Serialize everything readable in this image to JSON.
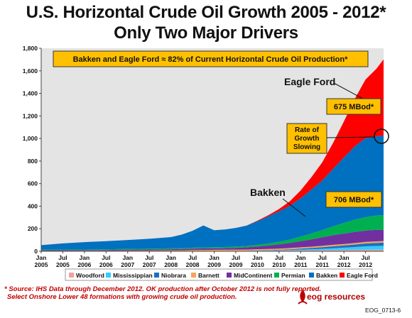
{
  "title_line1": "U.S. Horizontal Crude Oil Growth 2005 - 2012*",
  "title_line2": "Only Two Major Drivers",
  "footnote_line1": "* Source: IHS Data through December 2012. OK production after October 2012 is not fully reported.",
  "footnote_line2": "Select Onshore Lower 48 formations with growing crude oil production.",
  "logo_text": "eog resources",
  "slide_code": "EOG_0713-6",
  "chart_data": {
    "type": "area",
    "stacked": true,
    "ylim": [
      0,
      1800
    ],
    "yticks": [
      "0",
      "200",
      "400",
      "600",
      "800",
      "1,000",
      "1,200",
      "1,400",
      "1,600",
      "1,800"
    ],
    "xticks": [
      {
        "m": "Jan",
        "y": "2005"
      },
      {
        "m": "Jul",
        "y": "2005"
      },
      {
        "m": "Jan",
        "y": "2006"
      },
      {
        "m": "Jul",
        "y": "2006"
      },
      {
        "m": "Jan",
        "y": "2007"
      },
      {
        "m": "Jul",
        "y": "2007"
      },
      {
        "m": "Jan",
        "y": "2008"
      },
      {
        "m": "Jul",
        "y": "2008"
      },
      {
        "m": "Jan",
        "y": "2009"
      },
      {
        "m": "Jul",
        "y": "2009"
      },
      {
        "m": "Jan",
        "y": "2010"
      },
      {
        "m": "Jul",
        "y": "2010"
      },
      {
        "m": "Jan",
        "y": "2011"
      },
      {
        "m": "Jul",
        "y": "2011"
      },
      {
        "m": "Jan",
        "y": "2012"
      },
      {
        "m": "Jul",
        "y": "2012"
      }
    ],
    "x": [
      "2005-01",
      "2005-07",
      "2006-01",
      "2006-07",
      "2007-01",
      "2007-07",
      "2008-01",
      "2008-04",
      "2008-07",
      "2008-10",
      "2009-01",
      "2009-04",
      "2009-07",
      "2009-10",
      "2010-01",
      "2010-04",
      "2010-07",
      "2010-10",
      "2011-01",
      "2011-04",
      "2011-07",
      "2011-10",
      "2012-01",
      "2012-04",
      "2012-07",
      "2012-10",
      "2012-12"
    ],
    "series": [
      {
        "name": "Woodford",
        "color": "#f4a0a0",
        "values": [
          1,
          1,
          1,
          1,
          1,
          1,
          1,
          1,
          2,
          2,
          2,
          2,
          3,
          3,
          4,
          5,
          6,
          7,
          8,
          9,
          10,
          11,
          12,
          13,
          14,
          14,
          14
        ]
      },
      {
        "name": "Mississippian",
        "color": "#33ccff",
        "values": [
          1,
          1,
          1,
          1,
          1,
          1,
          1,
          1,
          1,
          1,
          1,
          1,
          1,
          2,
          2,
          3,
          4,
          5,
          7,
          9,
          12,
          16,
          20,
          25,
          30,
          33,
          35
        ]
      },
      {
        "name": "Niobrara",
        "color": "#1c6fbf",
        "values": [
          0,
          0,
          0,
          0,
          0,
          0,
          0,
          0,
          0,
          0,
          0,
          0,
          0,
          0,
          1,
          2,
          3,
          5,
          8,
          11,
          14,
          17,
          20,
          22,
          25,
          27,
          28
        ]
      },
      {
        "name": "Barnett",
        "color": "#f7a35c",
        "values": [
          2,
          2,
          3,
          3,
          4,
          5,
          6,
          7,
          8,
          9,
          10,
          10,
          10,
          10,
          11,
          11,
          11,
          12,
          12,
          12,
          13,
          13,
          13,
          13,
          14,
          14,
          14
        ]
      },
      {
        "name": "MidContinent",
        "color": "#7030a0",
        "values": [
          5,
          6,
          6,
          7,
          8,
          9,
          10,
          11,
          12,
          13,
          14,
          15,
          17,
          20,
          24,
          30,
          37,
          45,
          55,
          65,
          75,
          85,
          92,
          98,
          100,
          102,
          100
        ]
      },
      {
        "name": "Permian",
        "color": "#00b050",
        "values": [
          5,
          5,
          5,
          6,
          6,
          7,
          8,
          8,
          9,
          9,
          9,
          10,
          11,
          12,
          15,
          18,
          24,
          30,
          40,
          52,
          65,
          80,
          95,
          110,
          120,
          128,
          130
        ]
      },
      {
        "name": "Bakken",
        "color": "#0070c0",
        "values": [
          40,
          55,
          65,
          72,
          80,
          88,
          100,
          120,
          150,
          195,
          150,
          155,
          165,
          180,
          210,
          240,
          270,
          300,
          340,
          390,
          440,
          510,
          580,
          650,
          700,
          700,
          706
        ]
      },
      {
        "name": "Eagle Ford",
        "color": "#ff0000",
        "values": [
          0,
          0,
          0,
          0,
          0,
          0,
          0,
          0,
          0,
          0,
          0,
          0,
          0,
          1,
          4,
          10,
          20,
          40,
          70,
          110,
          160,
          230,
          320,
          420,
          520,
          600,
          675
        ]
      }
    ],
    "callout_box": "Bakken and Eagle Ford ≈ 82% of Current Horizontal Crude Oil Production*",
    "annotations": {
      "eagle_ford_label": "Eagle Ford",
      "eagle_ford_value": "675 MBod*",
      "bakken_label": "Bakken",
      "bakken_value": "706 MBod*",
      "slowing": [
        "Rate of",
        "Growth",
        "Slowing"
      ]
    },
    "legend": [
      "Woodford",
      "Mississippian",
      "Niobrara",
      "Barnett",
      "MidContinent",
      "Permian",
      "Bakken",
      "Eagle Ford"
    ],
    "grid": false,
    "accent_color": "#ffc000"
  }
}
